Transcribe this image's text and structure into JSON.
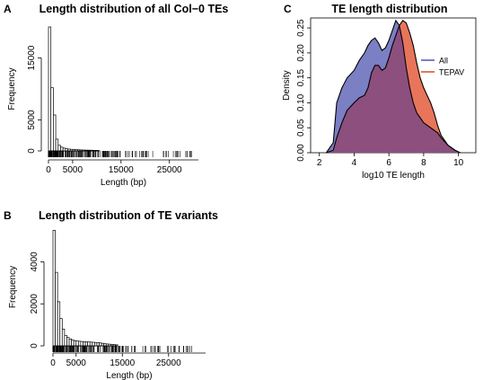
{
  "chart_data": [
    {
      "type": "bar",
      "panel": "A",
      "title": "Length distribution of all Col−0 TEs",
      "xlabel": "Length (bp)",
      "ylabel": "Frequency",
      "xticks": [
        0,
        5000,
        15000,
        25000
      ],
      "yticks": [
        0,
        5000,
        15000
      ],
      "xlim": [
        0,
        31000
      ],
      "ylim": [
        0,
        20000
      ],
      "bin_width": 500,
      "values": [
        20000,
        10200,
        5800,
        1900,
        900,
        600,
        450,
        350,
        300,
        260,
        230,
        200,
        180,
        160,
        140,
        130,
        120,
        110,
        100,
        90,
        80
      ],
      "rug": true
    },
    {
      "type": "bar",
      "panel": "B",
      "title": "Length distribution of TE variants",
      "xlabel": "Length (bp)",
      "ylabel": "Frequency",
      "xticks": [
        0,
        5000,
        15000,
        25000
      ],
      "yticks": [
        0,
        2000,
        4000
      ],
      "xlim": [
        0,
        33000
      ],
      "ylim": [
        0,
        5600
      ],
      "bin_width": 500,
      "values": [
        5500,
        3500,
        2100,
        1300,
        800,
        500,
        400,
        330,
        280,
        250,
        230,
        220,
        210,
        200,
        190,
        185,
        180,
        170,
        160,
        150,
        140,
        120,
        100,
        90,
        80,
        70,
        60,
        50
      ],
      "rug": true
    },
    {
      "type": "area",
      "panel": "C",
      "title": "TE length distribution",
      "xlabel": "log10 TE length",
      "ylabel": "Density",
      "xticks": [
        2,
        4,
        6,
        8,
        10
      ],
      "yticks": [
        0.0,
        0.05,
        0.1,
        0.15,
        0.2,
        0.25
      ],
      "xlim": [
        1.5,
        11
      ],
      "ylim": [
        0,
        0.27
      ],
      "legend": "right",
      "series": [
        {
          "name": "All",
          "color": "#7b7fc4",
          "x": [
            2.4,
            2.8,
            3.0,
            3.3,
            3.6,
            4.0,
            4.3,
            4.6,
            4.8,
            5.0,
            5.2,
            5.4,
            5.6,
            5.8,
            6.0,
            6.2,
            6.4,
            6.6,
            6.8,
            7.0,
            7.2,
            7.4,
            7.6,
            7.8,
            8.0,
            8.2,
            8.4,
            8.6,
            8.8,
            9.0,
            9.4,
            9.8,
            10.1
          ],
          "y": [
            0,
            0.02,
            0.1,
            0.13,
            0.15,
            0.165,
            0.185,
            0.2,
            0.215,
            0.225,
            0.23,
            0.22,
            0.205,
            0.21,
            0.225,
            0.245,
            0.265,
            0.255,
            0.22,
            0.17,
            0.13,
            0.1,
            0.08,
            0.07,
            0.06,
            0.055,
            0.05,
            0.045,
            0.04,
            0.03,
            0.015,
            0.005,
            0
          ]
        },
        {
          "name": "TEPAV",
          "color": "#e8755a",
          "x": [
            2.4,
            2.8,
            3.0,
            3.3,
            3.6,
            4.0,
            4.3,
            4.6,
            4.8,
            5.0,
            5.2,
            5.4,
            5.6,
            5.8,
            6.0,
            6.2,
            6.4,
            6.6,
            6.8,
            7.0,
            7.2,
            7.4,
            7.6,
            7.8,
            8.0,
            8.2,
            8.4,
            8.6,
            8.8,
            9.0,
            9.4,
            9.8,
            10.1
          ],
          "y": [
            0,
            0.005,
            0.03,
            0.06,
            0.085,
            0.1,
            0.11,
            0.115,
            0.13,
            0.16,
            0.175,
            0.175,
            0.165,
            0.17,
            0.19,
            0.215,
            0.235,
            0.255,
            0.265,
            0.26,
            0.24,
            0.215,
            0.18,
            0.15,
            0.13,
            0.115,
            0.1,
            0.08,
            0.055,
            0.035,
            0.015,
            0.005,
            0
          ]
        }
      ],
      "overlap_color": "#8c4f7e"
    }
  ],
  "panels": {
    "a": {
      "letter": "A",
      "title": "Length distribution of all Col−0 TEs"
    },
    "b": {
      "letter": "B",
      "title": "Length distribution of TE variants"
    },
    "c": {
      "letter": "C",
      "title": "TE length distribution"
    }
  }
}
